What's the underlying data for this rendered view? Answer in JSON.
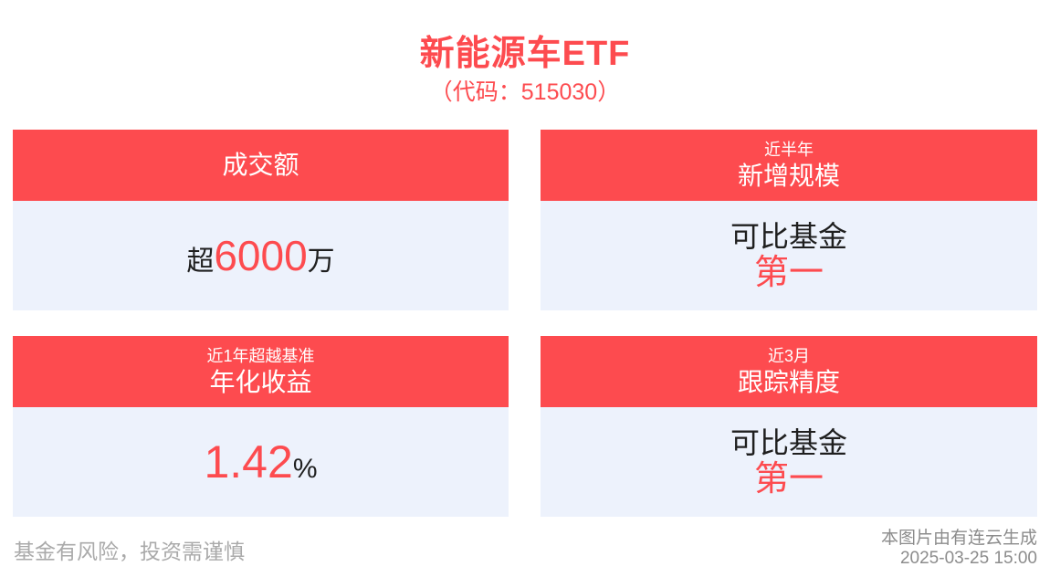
{
  "header": {
    "title": "新能源车ETF",
    "subtitle": "（代码：515030）"
  },
  "cards": [
    {
      "id": "turnover",
      "header": {
        "small": "",
        "main": "成交额"
      },
      "body": {
        "prefix": "超",
        "value": "6000",
        "suffix": "万"
      }
    },
    {
      "id": "new-scale",
      "header": {
        "small": "近半年",
        "main": "新增规模"
      },
      "body": {
        "line1": "可比基金",
        "line2": "第一"
      }
    },
    {
      "id": "annualized-return",
      "header": {
        "small": "近1年超越基准",
        "main": "年化收益"
      },
      "body": {
        "prefix": "",
        "value": "1.42",
        "suffix": "%"
      }
    },
    {
      "id": "tracking-accuracy",
      "header": {
        "small": "近3月",
        "main": "跟踪精度"
      },
      "body": {
        "line1": "可比基金",
        "line2": "第一"
      }
    }
  ],
  "colors": {
    "accent_red": "#FD4B4F",
    "card_body_bg": "#EDF2FC",
    "text_dark": "#1F1F1F",
    "disclaimer_gray": "#AAAAAA",
    "meta_gray": "#8C8C8C"
  },
  "footer": {
    "disclaimer": "基金有风险，投资需谨慎",
    "generator": "本图片由有连云生成",
    "timestamp": "2025-03-25 15:00"
  }
}
